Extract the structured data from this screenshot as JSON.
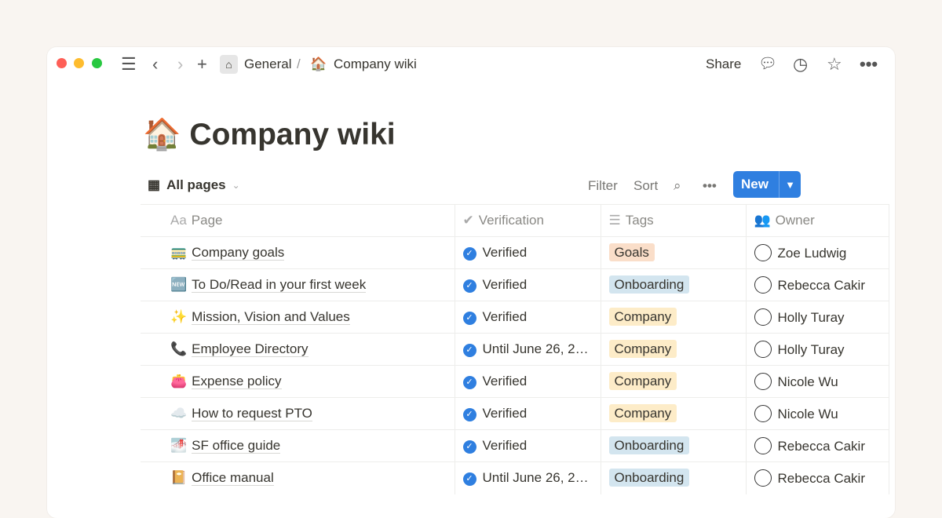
{
  "topbar": {
    "breadcrumb_parent": "General",
    "separator": "/",
    "breadcrumb_icon": "🏠",
    "breadcrumb_current": "Company wiki",
    "share": "Share",
    "icons": [
      "menu-icon",
      "back-icon",
      "forward-icon",
      "plus-icon",
      "home-icon",
      "comment-icon",
      "history-icon",
      "star-icon",
      "more-icon"
    ]
  },
  "page": {
    "icon": "🏠",
    "title": "Company wiki"
  },
  "toolbar": {
    "view": "All pages",
    "filter": "Filter",
    "sort": "Sort",
    "new": "New"
  },
  "columns": [
    {
      "icon": "Aa",
      "label": "Page"
    },
    {
      "icon": "✔",
      "label": "Verification"
    },
    {
      "icon": "☰",
      "label": "Tags"
    },
    {
      "icon": "👥",
      "label": "Owner"
    }
  ],
  "tag_colors": {
    "Goals": "#fadec9",
    "Onboarding": "#d3e5ef",
    "Company": "#fdecc8"
  },
  "rows": [
    {
      "icon": "🚃",
      "page": "Company goals",
      "verification": "Verified",
      "tag": "Goals",
      "owner": "Zoe Ludwig"
    },
    {
      "icon": "🆕",
      "page": "To Do/Read in your first week",
      "verification": "Verified",
      "tag": "Onboarding",
      "owner": "Rebecca Cakir"
    },
    {
      "icon": "✨",
      "page": "Mission, Vision and Values",
      "verification": "Verified",
      "tag": "Company",
      "owner": "Holly Turay"
    },
    {
      "icon": "📞",
      "page": "Employee Directory",
      "verification": "Until June 26, 2…",
      "tag": "Company",
      "owner": "Holly Turay"
    },
    {
      "icon": "👛",
      "page": "Expense policy",
      "verification": "Verified",
      "tag": "Company",
      "owner": "Nicole Wu"
    },
    {
      "icon": "☁️",
      "page": "How to request PTO",
      "verification": "Verified",
      "tag": "Company",
      "owner": "Nicole Wu"
    },
    {
      "icon": "🌁",
      "page": "SF office guide",
      "verification": "Verified",
      "tag": "Onboarding",
      "owner": "Rebecca Cakir"
    },
    {
      "icon": "📔",
      "page": "Office manual",
      "verification": "Until June 26, 2…",
      "tag": "Onboarding",
      "owner": "Rebecca Cakir"
    }
  ]
}
